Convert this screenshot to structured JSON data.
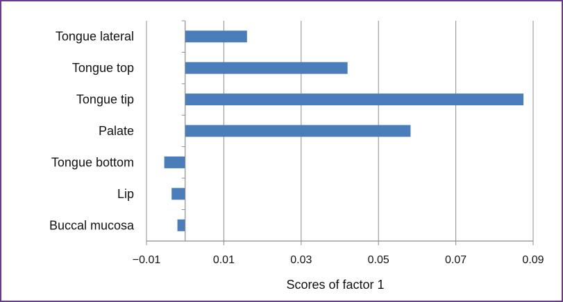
{
  "chart_data": {
    "type": "bar",
    "orientation": "horizontal",
    "categories": [
      "Tongue lateral",
      "Tongue top",
      "Tongue tip",
      "Palate",
      "Tongue bottom",
      "Lip",
      "Buccal mucosa"
    ],
    "values": [
      0.016,
      0.042,
      0.0875,
      0.0583,
      -0.0054,
      -0.0035,
      -0.002
    ],
    "xlabel": "Scores of factor 1",
    "xticks": [
      "-0.01",
      "0.01",
      "0.03",
      "0.05",
      "0.07",
      "0.09"
    ],
    "xlim": [
      -0.01,
      0.09
    ],
    "grid": "vertical",
    "bar_color": "#4a7ebb",
    "frame_color": "#6b3a8c"
  }
}
